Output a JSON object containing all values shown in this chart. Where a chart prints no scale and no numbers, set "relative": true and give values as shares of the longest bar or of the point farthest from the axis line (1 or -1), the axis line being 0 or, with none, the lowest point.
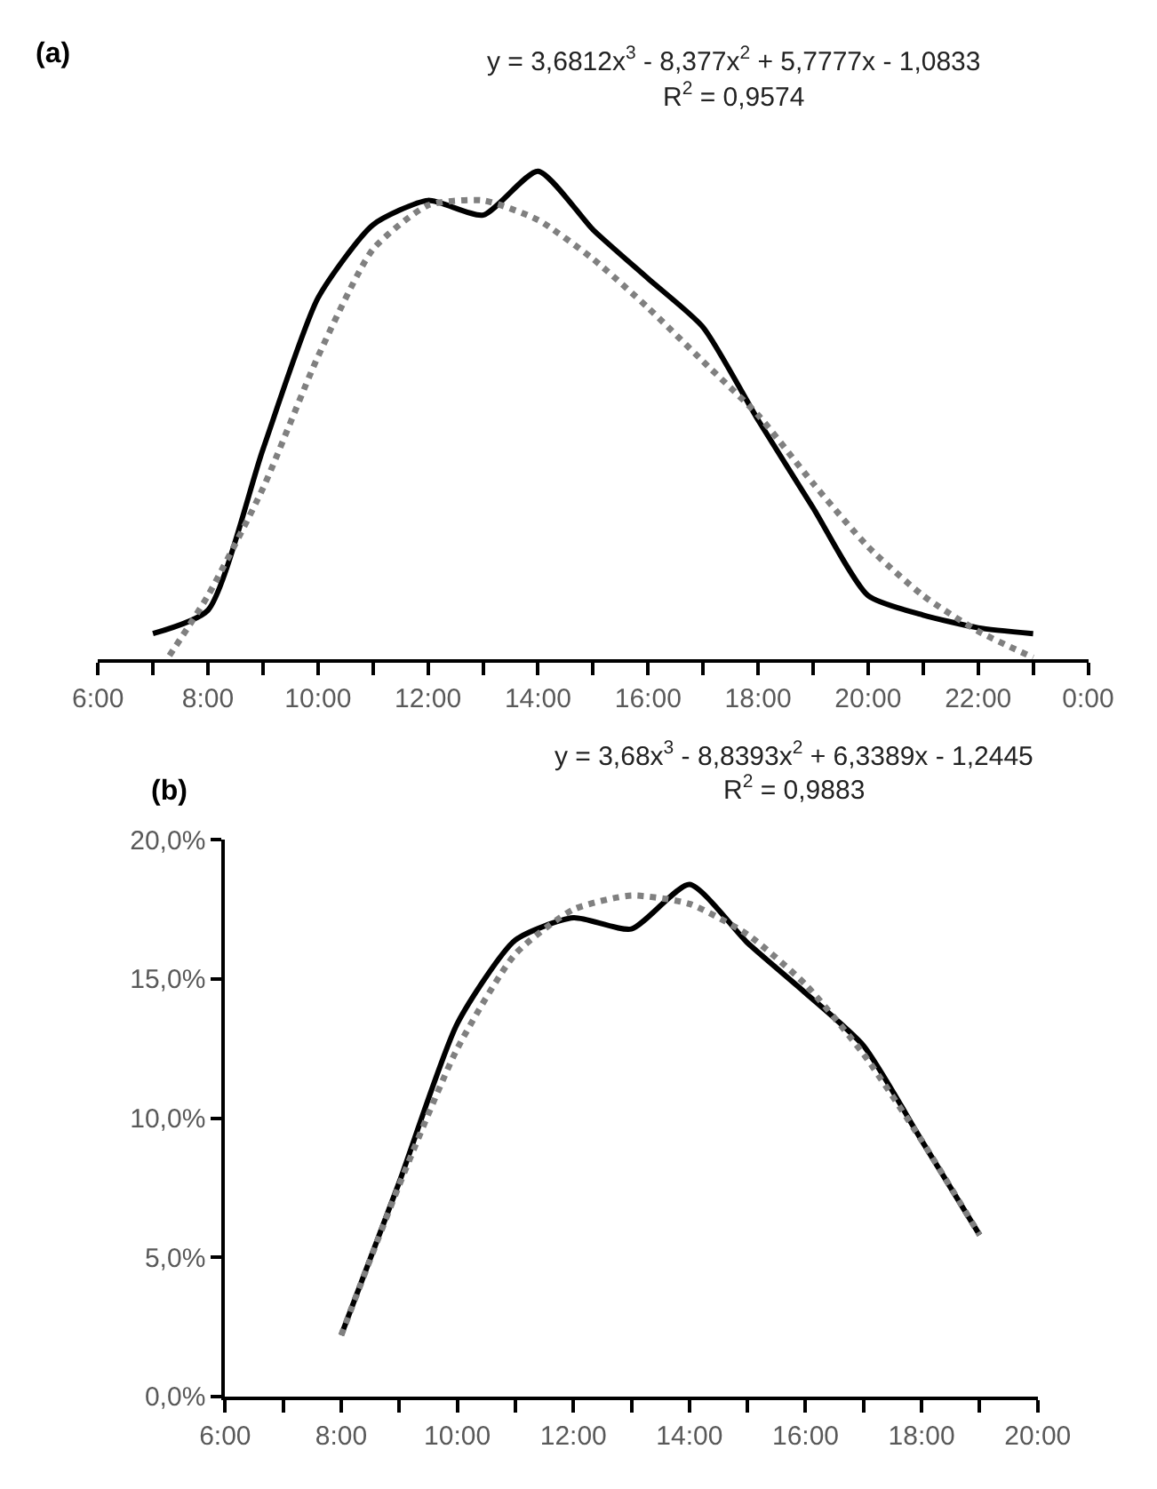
{
  "chart_data": [
    {
      "type": "line",
      "title": "(a)",
      "relative": true,
      "tick_labels": "x",
      "annotations": [
        "y = 3,6812x$^{3}$ - 8,377x$^{2}$ + 5,7777x - 1,0833",
        "R$^{2}$ = 0,9574"
      ],
      "x": [
        7,
        8,
        9,
        10,
        11,
        12,
        13,
        14,
        15,
        16,
        17,
        18,
        19,
        20,
        21,
        22,
        23
      ],
      "xlim": [
        6,
        24
      ],
      "xticks": [
        {
          "value": 6,
          "label": "6:00"
        },
        {
          "value": 7,
          "label": null
        },
        {
          "value": 8,
          "label": "8:00"
        },
        {
          "value": 9,
          "label": null
        },
        {
          "value": 10,
          "label": "10:00"
        },
        {
          "value": 11,
          "label": null
        },
        {
          "value": 12,
          "label": "12:00"
        },
        {
          "value": 13,
          "label": null
        },
        {
          "value": 14,
          "label": "14:00"
        },
        {
          "value": 15,
          "label": null
        },
        {
          "value": 16,
          "label": "16:00"
        },
        {
          "value": 17,
          "label": null
        },
        {
          "value": 18,
          "label": "18:00"
        },
        {
          "value": 19,
          "label": null
        },
        {
          "value": 20,
          "label": "20:00"
        },
        {
          "value": 21,
          "label": null
        },
        {
          "value": 22,
          "label": "22:00"
        },
        {
          "value": 23,
          "label": null
        },
        {
          "value": 24,
          "label": "0:00"
        }
      ],
      "series": [
        {
          "color": "#000000",
          "line_style": "solid",
          "values": [
            0.052,
            0.1,
            0.43,
            0.74,
            0.89,
            0.94,
            0.91,
            1.0,
            0.88,
            0.78,
            0.68,
            0.49,
            0.31,
            0.13,
            0.09,
            0.064,
            0.052
          ]
        },
        {
          "color": "#808080",
          "line_style": "dotted",
          "x": [
            7.3,
            8,
            9,
            10,
            11,
            12,
            13,
            14,
            15,
            16,
            17,
            18,
            19,
            20,
            21,
            22,
            23
          ],
          "values": [
            0.007,
            0.13,
            0.35,
            0.62,
            0.84,
            0.93,
            0.94,
            0.9,
            0.82,
            0.72,
            0.61,
            0.5,
            0.36,
            0.23,
            0.13,
            0.057,
            0.003
          ]
        }
      ]
    },
    {
      "type": "line",
      "title": "(b)",
      "annotations": [
        "y = 3,68x$^{3}$ - 8,8393x$^{2}$ + 6,3389x - 1,2445",
        "R$^{2}$ = 0,9883"
      ],
      "x": [
        8,
        9,
        10,
        11,
        12,
        13,
        14,
        15,
        16,
        17,
        18,
        19
      ],
      "xlim": [
        6,
        20
      ],
      "xticks": [
        {
          "value": 6,
          "label": "6:00"
        },
        {
          "value": 7,
          "label": null
        },
        {
          "value": 8,
          "label": "8:00"
        },
        {
          "value": 9,
          "label": null
        },
        {
          "value": 10,
          "label": "10:00"
        },
        {
          "value": 11,
          "label": null
        },
        {
          "value": 12,
          "label": "12:00"
        },
        {
          "value": 13,
          "label": null
        },
        {
          "value": 14,
          "label": "14:00"
        },
        {
          "value": 15,
          "label": null
        },
        {
          "value": 16,
          "label": "16:00"
        },
        {
          "value": 17,
          "label": null
        },
        {
          "value": 18,
          "label": "18:00"
        },
        {
          "value": 19,
          "label": null
        },
        {
          "value": 20,
          "label": "20:00"
        }
      ],
      "ylim": [
        0,
        20
      ],
      "yticks": [
        {
          "value": 0,
          "label": "0,0%"
        },
        {
          "value": 5,
          "label": "5,0%"
        },
        {
          "value": 10,
          "label": "10,0%"
        },
        {
          "value": 15,
          "label": "15,0%"
        },
        {
          "value": 20,
          "label": "20,0%"
        }
      ],
      "series": [
        {
          "color": "#000000",
          "line_style": "solid",
          "values": [
            2.2,
            7.7,
            13.4,
            16.4,
            17.2,
            16.8,
            18.4,
            16.3,
            14.5,
            12.6,
            9.2,
            5.8
          ]
        },
        {
          "color": "#808080",
          "line_style": "dotted",
          "values": [
            2.2,
            7.6,
            12.5,
            15.9,
            17.5,
            18.0,
            17.7,
            16.6,
            14.8,
            12.3,
            9.2,
            5.8
          ]
        }
      ]
    }
  ]
}
